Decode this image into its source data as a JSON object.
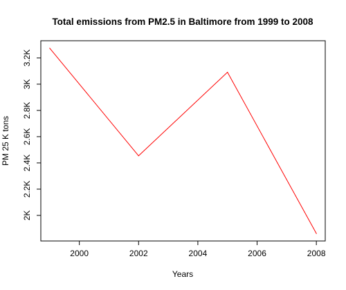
{
  "chart_data": {
    "type": "line",
    "title": "Total emissions from PM2.5 in Baltimore from 1999 to 2008",
    "xlabel": "Years",
    "ylabel": "PM 25 K tons",
    "x": [
      1999,
      2002,
      2005,
      2008
    ],
    "series": [
      {
        "values": [
          3274,
          2454,
          3091,
          1862
        ],
        "color": "#ff0000"
      }
    ],
    "xticks": [
      2000,
      2002,
      2004,
      2006,
      2008
    ],
    "xtick_labels": [
      "2000",
      "2002",
      "2004",
      "2006",
      "2008"
    ],
    "yticks": [
      2000,
      2200,
      2400,
      2600,
      2800,
      3000,
      3200
    ],
    "ytick_labels": [
      "2K",
      "2.2K",
      "2.4K",
      "2.6K",
      "2.8K",
      "3K",
      "3.2K"
    ],
    "xlim": [
      1998.7,
      2008.3
    ],
    "ylim": [
      1805,
      3331
    ],
    "grid": false,
    "legend": false
  }
}
